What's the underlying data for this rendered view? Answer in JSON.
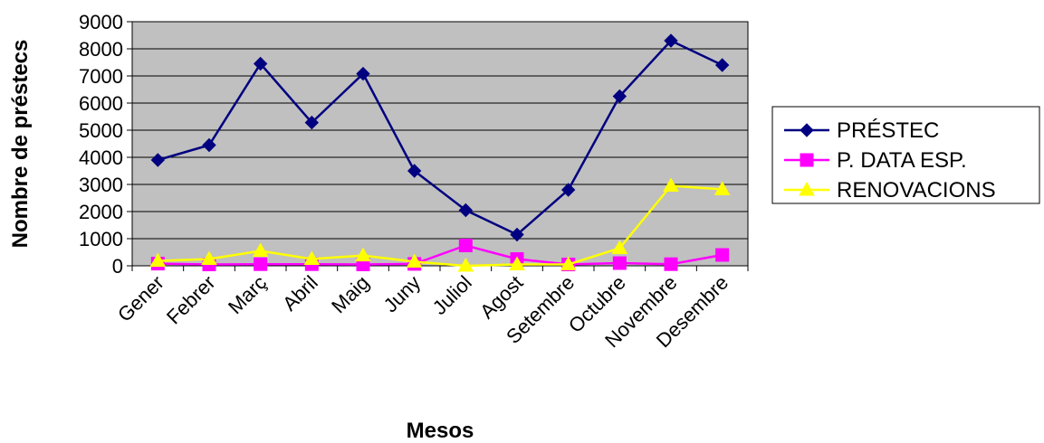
{
  "chart_data": {
    "type": "line",
    "xlabel": "Mesos",
    "ylabel": "Nombre de préstecs",
    "ylim": [
      0,
      9000
    ],
    "yticks": [
      0,
      1000,
      2000,
      3000,
      4000,
      5000,
      6000,
      7000,
      8000,
      9000
    ],
    "categories": [
      "Gener",
      "Febrer",
      "Març",
      "Abril",
      "Maig",
      "Juny",
      "Juliol",
      "Agost",
      "Setembre",
      "Octubre",
      "Novembre",
      "Desembre"
    ],
    "grid": true,
    "legend_position": "right",
    "series": [
      {
        "name": "PRÉSTEC",
        "color": "#000080",
        "marker": "diamond",
        "values": [
          3900,
          4450,
          7450,
          5280,
          7080,
          3500,
          2050,
          1150,
          2800,
          6250,
          8300,
          7400
        ]
      },
      {
        "name": "P. DATA ESP.",
        "color": "#FF00FF",
        "marker": "square",
        "values": [
          80,
          50,
          60,
          60,
          50,
          70,
          750,
          250,
          50,
          100,
          60,
          400
        ]
      },
      {
        "name": "RENOVACIONS",
        "color": "#FFFF00",
        "marker": "triangle",
        "values": [
          180,
          250,
          550,
          250,
          380,
          150,
          0,
          50,
          50,
          650,
          2950,
          2820
        ]
      }
    ]
  }
}
